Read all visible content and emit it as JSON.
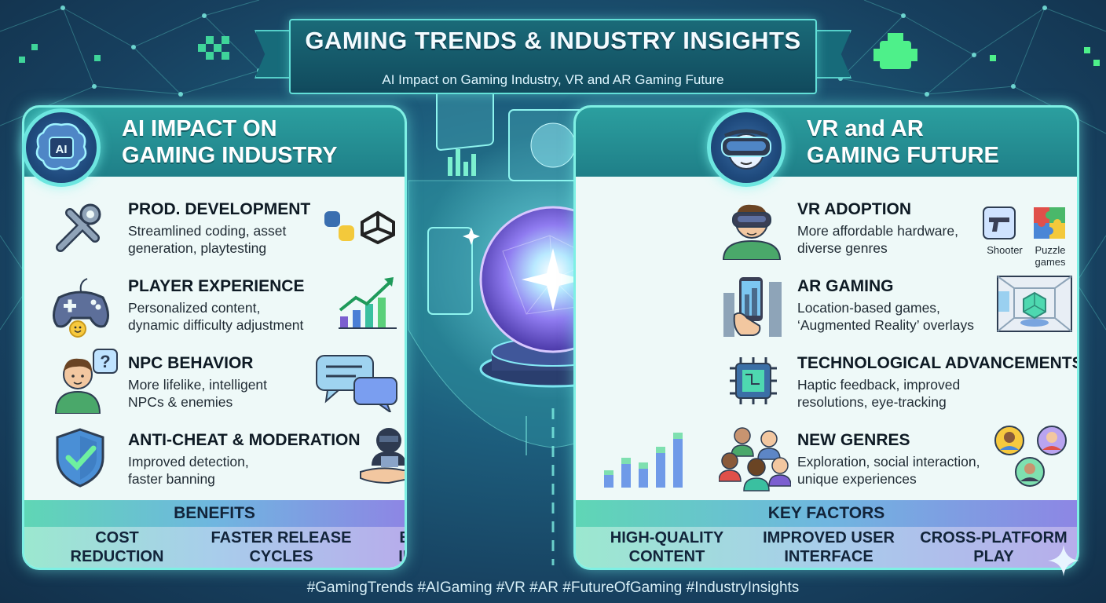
{
  "header": {
    "title": "GAMING TRENDS & INDUSTRY INSIGHTS",
    "subtitle": "AI Impact on Gaming Industry, VR and AR Gaming Future"
  },
  "left_panel": {
    "title_line1": "AI IMPACT ON",
    "title_line2": "GAMING INDUSTRY",
    "emblem_text": "AI",
    "items": [
      {
        "heading": "PROD. DEVELOPMENT",
        "line1": "Streamlined coding, asset",
        "line2": "generation, playtesting",
        "icon": "wrench-screwdriver-icon"
      },
      {
        "heading": "PLAYER EXPERIENCE",
        "line1": "Personalized content,",
        "line2": "dynamic difficulty adjustment",
        "icon": "gamepad-icon"
      },
      {
        "heading": "NPC BEHAVIOR",
        "line1": "More lifelike, intelligent",
        "line2": "NPCs & enemies",
        "icon": "npc-person-icon"
      },
      {
        "heading": "ANTI-CHEAT & MODERATION",
        "line1": "Improved detection,",
        "line2": "faster banning",
        "icon": "shield-check-icon"
      }
    ],
    "bottom_title": "BENEFITS",
    "bottom_items": [
      {
        "line1": "COST",
        "line2": "REDUCTION"
      },
      {
        "line1": "FASTER RELEASE",
        "line2": "CYCLES"
      },
      {
        "line1": "ENHANCED",
        "line2": "IMMERSION"
      }
    ]
  },
  "right_panel": {
    "title_line1": "VR and AR",
    "title_line2": "GAMING FUTURE",
    "items": [
      {
        "heading": "VR ADOPTION",
        "line1": "More affordable hardware,",
        "line2": "diverse genres",
        "icon": "vr-headset-person-icon"
      },
      {
        "heading": "AR GAMING",
        "line1": "Location-based games,",
        "line2": "‘Augmented Reality’ overlays",
        "icon": "ar-phone-icon"
      },
      {
        "heading": "TECHNOLOGICAL ADVANCEMENTS",
        "line1": "Haptic feedback, improved",
        "line2": "resolutions, eye-tracking",
        "icon": "chip-icon"
      },
      {
        "heading": "NEW GENRES",
        "line1": "Exploration, social interaction,",
        "line2": "unique experiences",
        "icon": "people-group-icon"
      }
    ],
    "genre_labels": {
      "shooter": "Shooter",
      "puzzle_line1": "Puzzle",
      "puzzle_line2": "games"
    },
    "bottom_title": "KEY FACTORS",
    "bottom_items": [
      {
        "line1": "HIGH-QUALITY",
        "line2": "CONTENT"
      },
      {
        "line1": "IMPROVED USER",
        "line2": "INTERFACE"
      },
      {
        "line1": "CROSS-PLATFORM",
        "line2": "PLAY"
      }
    ]
  },
  "footer": {
    "hashtags": "#GamingTrends #AIGaming #VR #AR #FutureOfGaming #IndustryInsights"
  },
  "colors": {
    "background": "#1d5f7e",
    "panel_border": "#7ef0e4",
    "panel_header": "#2b9f9f",
    "bars_gradient_start": "#5fd6b5",
    "bars_gradient_end": "#8d86e4"
  }
}
